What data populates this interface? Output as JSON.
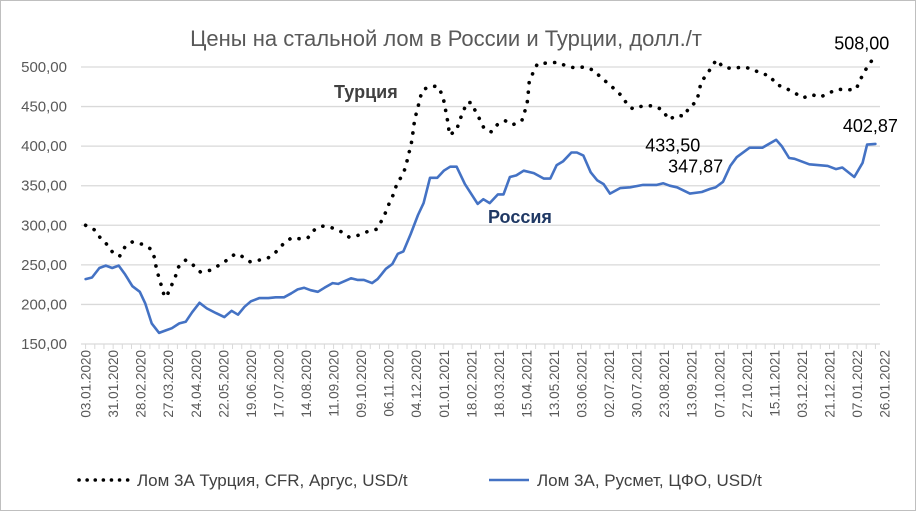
{
  "chart_data": {
    "type": "line",
    "title": "Цены на стальной лом в России и Турции, долл./т",
    "xlabel": "",
    "ylabel": "",
    "ylim": [
      150,
      500
    ],
    "xlim": [
      -0.5,
      86.5
    ],
    "grid": true,
    "legend_position": "bottom",
    "y_ticks": [
      "150,00",
      "200,00",
      "250,00",
      "300,00",
      "350,00",
      "400,00",
      "450,00",
      "500,00"
    ],
    "y_tick_values": [
      150,
      200,
      250,
      300,
      350,
      400,
      450,
      500
    ],
    "x_tick_labels": [
      "03.01.2020",
      "31.01.2020",
      "28.02.2020",
      "27.03.2020",
      "24.04.2020",
      "22.05.2020",
      "19.06.2020",
      "17.07.2020",
      "14.08.2020",
      "11.09.2020",
      "09.10.2020",
      "06.11.2020",
      "04.12.2020",
      "01.01.2021",
      "18.02.2021",
      "18.03.2021",
      "15.04.2021",
      "13.05.2021",
      "03.06.2021",
      "02.07.2021",
      "30.07.2021",
      "23.08.2021",
      "13.09.2021",
      "07.10.2021",
      "27.10.2021",
      "15.11.2021",
      "03.12.2021",
      "21.12.2021",
      "07.01.2022",
      "26.01.2022"
    ],
    "x_tick_step": 3,
    "series": [
      {
        "name": "Лом 3А Турция, CFR, Аргус, USD/t",
        "inline_label": "Турция",
        "color": "#000000",
        "style": "dotted",
        "points": [
          [
            0,
            300
          ],
          [
            1.0,
            294
          ],
          [
            1.6,
            284
          ],
          [
            2.4,
            275
          ],
          [
            3.0,
            265
          ],
          [
            3.7,
            261
          ],
          [
            4.3,
            273
          ],
          [
            5.1,
            279
          ],
          [
            6.2,
            276
          ],
          [
            7.1,
            270
          ],
          [
            7.5,
            259
          ],
          [
            7.7,
            246
          ],
          [
            8.0,
            233
          ],
          [
            8.3,
            222
          ],
          [
            8.6,
            209
          ],
          [
            8.9,
            212
          ],
          [
            9.4,
            225
          ],
          [
            9.8,
            236
          ],
          [
            10.1,
            247
          ],
          [
            10.9,
            256
          ],
          [
            11.7,
            250
          ],
          [
            12.5,
            241
          ],
          [
            13.5,
            243
          ],
          [
            14.6,
            250
          ],
          [
            15.4,
            256
          ],
          [
            16.3,
            264
          ],
          [
            17.0,
            261
          ],
          [
            17.9,
            254
          ],
          [
            18.9,
            256
          ],
          [
            19.9,
            259
          ],
          [
            20.7,
            266
          ],
          [
            21.5,
            276
          ],
          [
            22.4,
            284
          ],
          [
            23.3,
            283
          ],
          [
            24.2,
            284
          ],
          [
            24.9,
            294
          ],
          [
            25.8,
            299
          ],
          [
            26.8,
            297
          ],
          [
            27.8,
            292
          ],
          [
            28.7,
            285
          ],
          [
            29.6,
            287
          ],
          [
            30.7,
            292
          ],
          [
            31.7,
            295
          ],
          [
            32.3,
            307
          ],
          [
            32.7,
            317
          ],
          [
            33.1,
            329
          ],
          [
            33.6,
            341
          ],
          [
            33.9,
            353
          ],
          [
            34.5,
            363
          ],
          [
            34.9,
            375
          ],
          [
            35.1,
            387
          ],
          [
            35.4,
            399
          ],
          [
            35.6,
            412
          ],
          [
            35.7,
            424
          ],
          [
            35.9,
            437
          ],
          [
            36.2,
            449
          ],
          [
            36.4,
            461
          ],
          [
            36.8,
            472
          ],
          [
            37.8,
            476
          ],
          [
            38.4,
            475
          ],
          [
            38.9,
            463
          ],
          [
            39.1,
            452
          ],
          [
            39.3,
            439
          ],
          [
            39.5,
            427
          ],
          [
            39.6,
            414
          ],
          [
            40.4,
            420
          ],
          [
            40.7,
            432
          ],
          [
            41.1,
            443
          ],
          [
            41.5,
            455
          ],
          [
            42.0,
            455
          ],
          [
            42.5,
            443
          ],
          [
            43.0,
            432
          ],
          [
            43.4,
            422
          ],
          [
            44.2,
            418
          ],
          [
            44.9,
            428
          ],
          [
            45.7,
            432
          ],
          [
            46.5,
            427
          ],
          [
            47.5,
            432
          ],
          [
            47.8,
            443
          ],
          [
            48.1,
            456
          ],
          [
            48.2,
            468
          ],
          [
            48.3,
            481
          ],
          [
            48.7,
            492
          ],
          [
            49.2,
            504
          ],
          [
            50.3,
            505
          ],
          [
            51.4,
            506
          ],
          [
            52.2,
            502
          ],
          [
            53.2,
            499
          ],
          [
            54.3,
            500
          ],
          [
            55.3,
            496
          ],
          [
            56.1,
            487
          ],
          [
            56.9,
            479
          ],
          [
            57.8,
            470
          ],
          [
            58.5,
            462
          ],
          [
            59.0,
            452
          ],
          [
            59.6,
            447
          ],
          [
            60.7,
            451
          ],
          [
            61.8,
            451
          ],
          [
            62.8,
            446
          ],
          [
            63.5,
            433.5
          ],
          [
            64.4,
            439
          ],
          [
            65.2,
            438
          ],
          [
            65.7,
            449
          ],
          [
            66.5,
            456
          ],
          [
            66.8,
            468
          ],
          [
            67.0,
            481
          ],
          [
            67.7,
            491
          ],
          [
            68.2,
            501
          ],
          [
            68.7,
            509
          ],
          [
            69.4,
            500
          ],
          [
            70.4,
            498
          ],
          [
            71.5,
            500
          ],
          [
            72.5,
            498
          ],
          [
            73.5,
            492
          ],
          [
            74.5,
            489
          ],
          [
            75.2,
            478
          ],
          [
            76.1,
            474
          ],
          [
            77.1,
            468
          ],
          [
            78.1,
            461
          ],
          [
            79.1,
            465
          ],
          [
            80.0,
            462
          ],
          [
            80.9,
            467
          ],
          [
            81.9,
            472
          ],
          [
            82.9,
            471
          ],
          [
            83.9,
            472
          ],
          [
            84.4,
            485
          ],
          [
            84.9,
            496
          ],
          [
            85.6,
            508
          ]
        ],
        "annotations": [
          {
            "at": 63.5,
            "value": 433.5,
            "text": "433,50"
          },
          {
            "at": 85.6,
            "value": 508,
            "text": "508,00"
          }
        ]
      },
      {
        "name": "Лом 3А, Русмет, ЦФО, USD/t",
        "inline_label": "Россия",
        "color": "#4472c4",
        "style": "solid",
        "points": [
          [
            0,
            232
          ],
          [
            0.7,
            234
          ],
          [
            1.5,
            246
          ],
          [
            2.2,
            249
          ],
          [
            2.9,
            246
          ],
          [
            3.6,
            249
          ],
          [
            4.3,
            238
          ],
          [
            5.1,
            223
          ],
          [
            5.9,
            216
          ],
          [
            6.5,
            201
          ],
          [
            7.2,
            176
          ],
          [
            8.0,
            164
          ],
          [
            8.7,
            167
          ],
          [
            9.4,
            170
          ],
          [
            10.2,
            176
          ],
          [
            10.9,
            178
          ],
          [
            11.6,
            190
          ],
          [
            12.4,
            202
          ],
          [
            13.2,
            195
          ],
          [
            14.2,
            189
          ],
          [
            15.1,
            184
          ],
          [
            15.9,
            192
          ],
          [
            16.6,
            187
          ],
          [
            17.3,
            197
          ],
          [
            18.0,
            204
          ],
          [
            18.9,
            208
          ],
          [
            19.9,
            208
          ],
          [
            20.7,
            209
          ],
          [
            21.6,
            209
          ],
          [
            22.4,
            214
          ],
          [
            23.1,
            219
          ],
          [
            23.8,
            221
          ],
          [
            24.5,
            218
          ],
          [
            25.3,
            216
          ],
          [
            26.0,
            221
          ],
          [
            26.9,
            227
          ],
          [
            27.5,
            226
          ],
          [
            28.9,
            233
          ],
          [
            29.6,
            231
          ],
          [
            30.3,
            231
          ],
          [
            31.2,
            227
          ],
          [
            31.8,
            232
          ],
          [
            32.7,
            245
          ],
          [
            33.4,
            251
          ],
          [
            34.0,
            264
          ],
          [
            34.6,
            267
          ],
          [
            35.4,
            289
          ],
          [
            36.2,
            313
          ],
          [
            36.8,
            328
          ],
          [
            37.5,
            360
          ],
          [
            38.3,
            360
          ],
          [
            39.0,
            369
          ],
          [
            39.7,
            374
          ],
          [
            40.4,
            374
          ],
          [
            41.3,
            352
          ],
          [
            42.7,
            327
          ],
          [
            43.3,
            333
          ],
          [
            44.0,
            328
          ],
          [
            44.9,
            339
          ],
          [
            45.5,
            339
          ],
          [
            46.2,
            361
          ],
          [
            46.9,
            363
          ],
          [
            47.7,
            369
          ],
          [
            48.8,
            366
          ],
          [
            49.9,
            359
          ],
          [
            50.6,
            359
          ],
          [
            51.3,
            376
          ],
          [
            52.0,
            381
          ],
          [
            52.9,
            392
          ],
          [
            53.5,
            392
          ],
          [
            54.2,
            388
          ],
          [
            55.0,
            367
          ],
          [
            55.7,
            357
          ],
          [
            56.4,
            352
          ],
          [
            57.1,
            340
          ],
          [
            58.2,
            347
          ],
          [
            59.3,
            348
          ],
          [
            60.7,
            351
          ],
          [
            62.2,
            351
          ],
          [
            62.9,
            353
          ],
          [
            63.6,
            350
          ],
          [
            64.4,
            348
          ],
          [
            65.8,
            340
          ],
          [
            67.1,
            342
          ],
          [
            68.0,
            346
          ],
          [
            68.6,
            347.87
          ],
          [
            69.4,
            355
          ],
          [
            70.2,
            375
          ],
          [
            70.9,
            386
          ],
          [
            72.3,
            398
          ],
          [
            73.7,
            398
          ],
          [
            75.2,
            408
          ],
          [
            75.8,
            400
          ],
          [
            76.6,
            385
          ],
          [
            77.2,
            384
          ],
          [
            78.8,
            377
          ],
          [
            80.8,
            375
          ],
          [
            81.7,
            371
          ],
          [
            82.4,
            373
          ],
          [
            83.7,
            361
          ],
          [
            84.6,
            379
          ],
          [
            85.1,
            402
          ],
          [
            86.0,
            402.87
          ]
        ],
        "annotations": [
          {
            "at": 68.6,
            "value": 347.87,
            "text": "347,87"
          },
          {
            "at": 86.0,
            "value": 402.87,
            "text": "402,87"
          }
        ]
      }
    ]
  }
}
